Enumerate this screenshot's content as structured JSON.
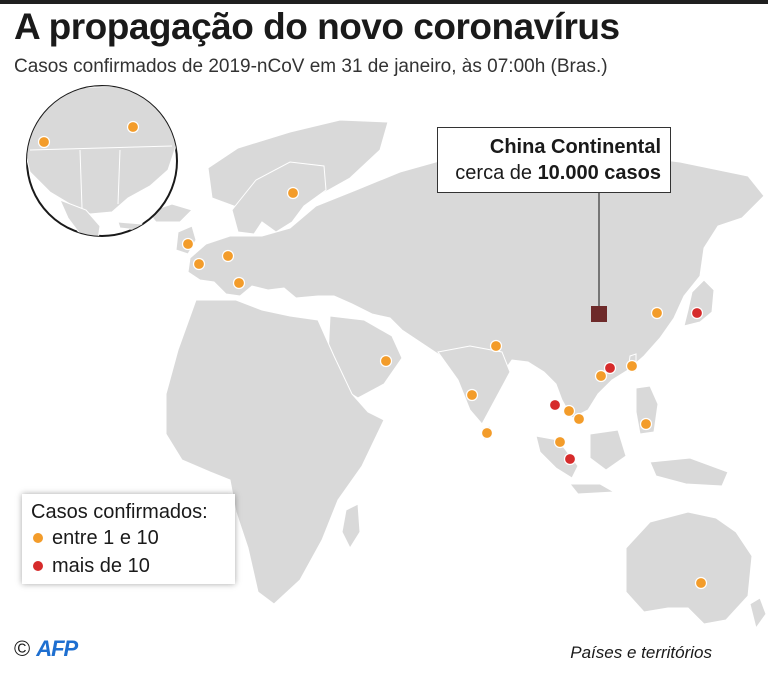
{
  "title": "A propagação do novo coronavírus",
  "subtitle": "Casos confirmados de 2019-nCoV em 31 de janeiro, às 07:00h (Bras.)",
  "callout": {
    "title": "China Continental",
    "line_prefix": "cerca de ",
    "line_value": "10.000 casos"
  },
  "legend": {
    "title": "Casos confirmados:",
    "items": [
      {
        "label": "entre 1 e 10",
        "color": "#f39c2a"
      },
      {
        "label": "mais de 10",
        "color": "#d62b2b"
      }
    ]
  },
  "credit": {
    "symbol": "©",
    "logo": "AFP"
  },
  "footnote": "Países e territórios",
  "colors": {
    "land": "#d9d9d9",
    "water": "#ffffff",
    "china_marker": "#6e2a2a",
    "callout_border": "#333333",
    "small_cases": "#f39c2a",
    "large_cases": "#d62b2b"
  }
}
